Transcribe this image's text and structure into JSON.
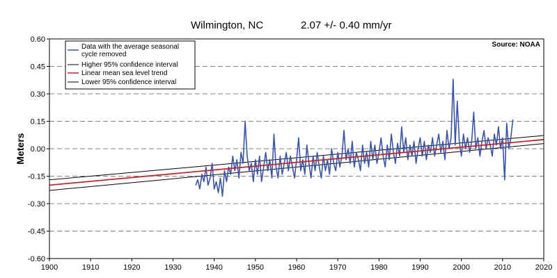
{
  "chart_data": {
    "type": "line",
    "title_location": "Wilmington, NC",
    "title_trend": "2.07 +/- 0.40 mm/yr",
    "source": "Source: NOAA",
    "xlabel": "",
    "ylabel": "Meters",
    "xlim": [
      1900,
      2020
    ],
    "ylim": [
      -0.6,
      0.6
    ],
    "x_ticks": [
      1900,
      1910,
      1920,
      1930,
      1940,
      1950,
      1960,
      1970,
      1980,
      1990,
      2000,
      2010,
      2020
    ],
    "y_ticks": [
      "0.60",
      "0.45",
      "0.30",
      "0.15",
      "0.00",
      "-0.15",
      "-0.30",
      "-0.45",
      "-0.60"
    ],
    "grid": "horizontal dashed",
    "legend_position": "top-left",
    "legend": [
      {
        "name_line1": "Data with the average seasonal",
        "name_line2": "cycle removed",
        "color": "#3a55a8"
      },
      {
        "name": "Higher 95% confidence interval",
        "color": "#000000"
      },
      {
        "name": "Linear mean sea level trend",
        "color": "#c0282d"
      },
      {
        "name": "Lower 95% confidence interval",
        "color": "#000000"
      }
    ],
    "series": [
      {
        "name": "Data with the average seasonal cycle removed",
        "color": "#3a55a8",
        "points": [
          [
            1935.5,
            -0.2
          ],
          [
            1936.0,
            -0.17
          ],
          [
            1936.5,
            -0.22
          ],
          [
            1937.0,
            -0.14
          ],
          [
            1937.5,
            -0.18
          ],
          [
            1938.0,
            -0.1
          ],
          [
            1938.5,
            -0.2
          ],
          [
            1939.0,
            -0.16
          ],
          [
            1939.5,
            -0.08
          ],
          [
            1940.0,
            -0.22
          ],
          [
            1940.5,
            -0.18
          ],
          [
            1941.0,
            -0.24
          ],
          [
            1941.5,
            -0.16
          ],
          [
            1942.0,
            -0.26
          ],
          [
            1942.5,
            -0.12
          ],
          [
            1943.0,
            -0.18
          ],
          [
            1943.5,
            -0.1
          ],
          [
            1944.0,
            -0.14
          ],
          [
            1944.5,
            -0.04
          ],
          [
            1945.0,
            -0.12
          ],
          [
            1945.5,
            -0.06
          ],
          [
            1946.0,
            -0.16
          ],
          [
            1946.5,
            -0.02
          ],
          [
            1947.0,
            -0.08
          ],
          [
            1947.5,
            0.15
          ],
          [
            1948.0,
            -0.04
          ],
          [
            1948.5,
            -0.12
          ],
          [
            1949.0,
            -0.08
          ],
          [
            1949.5,
            -0.18
          ],
          [
            1950.0,
            -0.06
          ],
          [
            1950.5,
            -0.14
          ],
          [
            1951.0,
            -0.04
          ],
          [
            1951.5,
            -0.18
          ],
          [
            1952.0,
            -0.1
          ],
          [
            1952.5,
            -0.02
          ],
          [
            1953.0,
            -0.12
          ],
          [
            1953.5,
            -0.06
          ],
          [
            1954.0,
            -0.16
          ],
          [
            1954.5,
            0.08
          ],
          [
            1955.0,
            -0.1
          ],
          [
            1955.5,
            -0.16
          ],
          [
            1956.0,
            -0.04
          ],
          [
            1956.5,
            -0.14
          ],
          [
            1957.0,
            -0.08
          ],
          [
            1957.5,
            -0.02
          ],
          [
            1958.0,
            -0.12
          ],
          [
            1958.5,
            -0.04
          ],
          [
            1959.0,
            -0.1
          ],
          [
            1959.5,
            -0.16
          ],
          [
            1960.0,
            -0.06
          ],
          [
            1960.5,
            0.06
          ],
          [
            1961.0,
            -0.12
          ],
          [
            1961.5,
            -0.06
          ],
          [
            1962.0,
            -0.14
          ],
          [
            1962.5,
            0.02
          ],
          [
            1963.0,
            -0.08
          ],
          [
            1963.5,
            -0.16
          ],
          [
            1964.0,
            -0.04
          ],
          [
            1964.5,
            -0.12
          ],
          [
            1965.0,
            -0.02
          ],
          [
            1965.5,
            -0.1
          ],
          [
            1966.0,
            -0.16
          ],
          [
            1966.5,
            -0.04
          ],
          [
            1967.0,
            -0.12
          ],
          [
            1967.5,
            -0.06
          ],
          [
            1968.0,
            -0.14
          ],
          [
            1968.5,
            0.0
          ],
          [
            1969.0,
            -0.08
          ],
          [
            1969.5,
            -0.12
          ],
          [
            1970.0,
            -0.02
          ],
          [
            1970.5,
            -0.1
          ],
          [
            1971.0,
            -0.04
          ],
          [
            1971.5,
            0.1
          ],
          [
            1972.0,
            -0.06
          ],
          [
            1972.5,
            0.0
          ],
          [
            1973.0,
            -0.08
          ],
          [
            1973.5,
            0.04
          ],
          [
            1974.0,
            -0.1
          ],
          [
            1974.5,
            -0.02
          ],
          [
            1975.0,
            -0.06
          ],
          [
            1975.5,
            -0.12
          ],
          [
            1976.0,
            0.02
          ],
          [
            1976.5,
            -0.08
          ],
          [
            1977.0,
            -0.02
          ],
          [
            1977.5,
            -0.1
          ],
          [
            1978.0,
            0.04
          ],
          [
            1978.5,
            -0.06
          ],
          [
            1979.0,
            0.02
          ],
          [
            1979.5,
            -0.08
          ],
          [
            1980.0,
            -0.02
          ],
          [
            1980.5,
            0.06
          ],
          [
            1981.0,
            -0.04
          ],
          [
            1981.5,
            -0.1
          ],
          [
            1982.0,
            0.02
          ],
          [
            1982.5,
            -0.06
          ],
          [
            1983.0,
            0.08
          ],
          [
            1983.5,
            -0.02
          ],
          [
            1984.0,
            -0.08
          ],
          [
            1984.5,
            0.03
          ],
          [
            1985.0,
            -0.04
          ],
          [
            1985.5,
            0.12
          ],
          [
            1986.0,
            -0.02
          ],
          [
            1986.5,
            0.06
          ],
          [
            1987.0,
            -0.06
          ],
          [
            1987.5,
            0.02
          ],
          [
            1988.0,
            -0.04
          ],
          [
            1988.5,
            0.04
          ],
          [
            1989.0,
            -0.08
          ],
          [
            1989.5,
            0.0
          ],
          [
            1990.0,
            0.06
          ],
          [
            1990.5,
            -0.04
          ],
          [
            1991.0,
            0.04
          ],
          [
            1991.5,
            -0.06
          ],
          [
            1992.0,
            0.02
          ],
          [
            1992.5,
            -0.02
          ],
          [
            1993.0,
            0.06
          ],
          [
            1993.5,
            -0.04
          ],
          [
            1994.0,
            0.02
          ],
          [
            1994.5,
            0.08
          ],
          [
            1995.0,
            -0.02
          ],
          [
            1995.5,
            0.04
          ],
          [
            1996.0,
            -0.06
          ],
          [
            1996.5,
            0.1
          ],
          [
            1997.0,
            0.0
          ],
          [
            1997.5,
            0.06
          ],
          [
            1998.0,
            0.38
          ],
          [
            1998.5,
            0.02
          ],
          [
            1999.0,
            0.26
          ],
          [
            1999.5,
            0.04
          ],
          [
            2000.0,
            -0.04
          ],
          [
            2000.5,
            0.08
          ],
          [
            2001.0,
            0.0
          ],
          [
            2001.5,
            0.06
          ],
          [
            2002.0,
            -0.02
          ],
          [
            2002.5,
            0.04
          ],
          [
            2003.0,
            0.2
          ],
          [
            2003.5,
            0.0
          ],
          [
            2004.0,
            0.06
          ],
          [
            2004.5,
            -0.04
          ],
          [
            2005.0,
            0.04
          ],
          [
            2005.5,
            0.1
          ],
          [
            2006.0,
            0.0
          ],
          [
            2006.5,
            0.06
          ],
          [
            2007.0,
            0.02
          ],
          [
            2007.5,
            -0.04
          ],
          [
            2008.0,
            0.08
          ],
          [
            2008.5,
            0.02
          ],
          [
            2009.0,
            0.12
          ],
          [
            2009.5,
            0.0
          ],
          [
            2010.0,
            0.06
          ],
          [
            2010.5,
            -0.17
          ],
          [
            2011.0,
            0.14
          ],
          [
            2011.5,
            0.0
          ],
          [
            2012.0,
            0.06
          ],
          [
            2012.5,
            0.16
          ]
        ]
      },
      {
        "name": "Higher 95% confidence interval",
        "color": "#000000",
        "points": [
          [
            1900,
            -0.17
          ],
          [
            2020,
            0.072
          ]
        ]
      },
      {
        "name": "Linear mean sea level trend",
        "color": "#c0282d",
        "points": [
          [
            1900,
            -0.199
          ],
          [
            2020,
            0.05
          ]
        ]
      },
      {
        "name": "Lower 95% confidence interval",
        "color": "#000000",
        "points": [
          [
            1900,
            -0.228
          ],
          [
            2020,
            0.028
          ]
        ]
      }
    ]
  }
}
